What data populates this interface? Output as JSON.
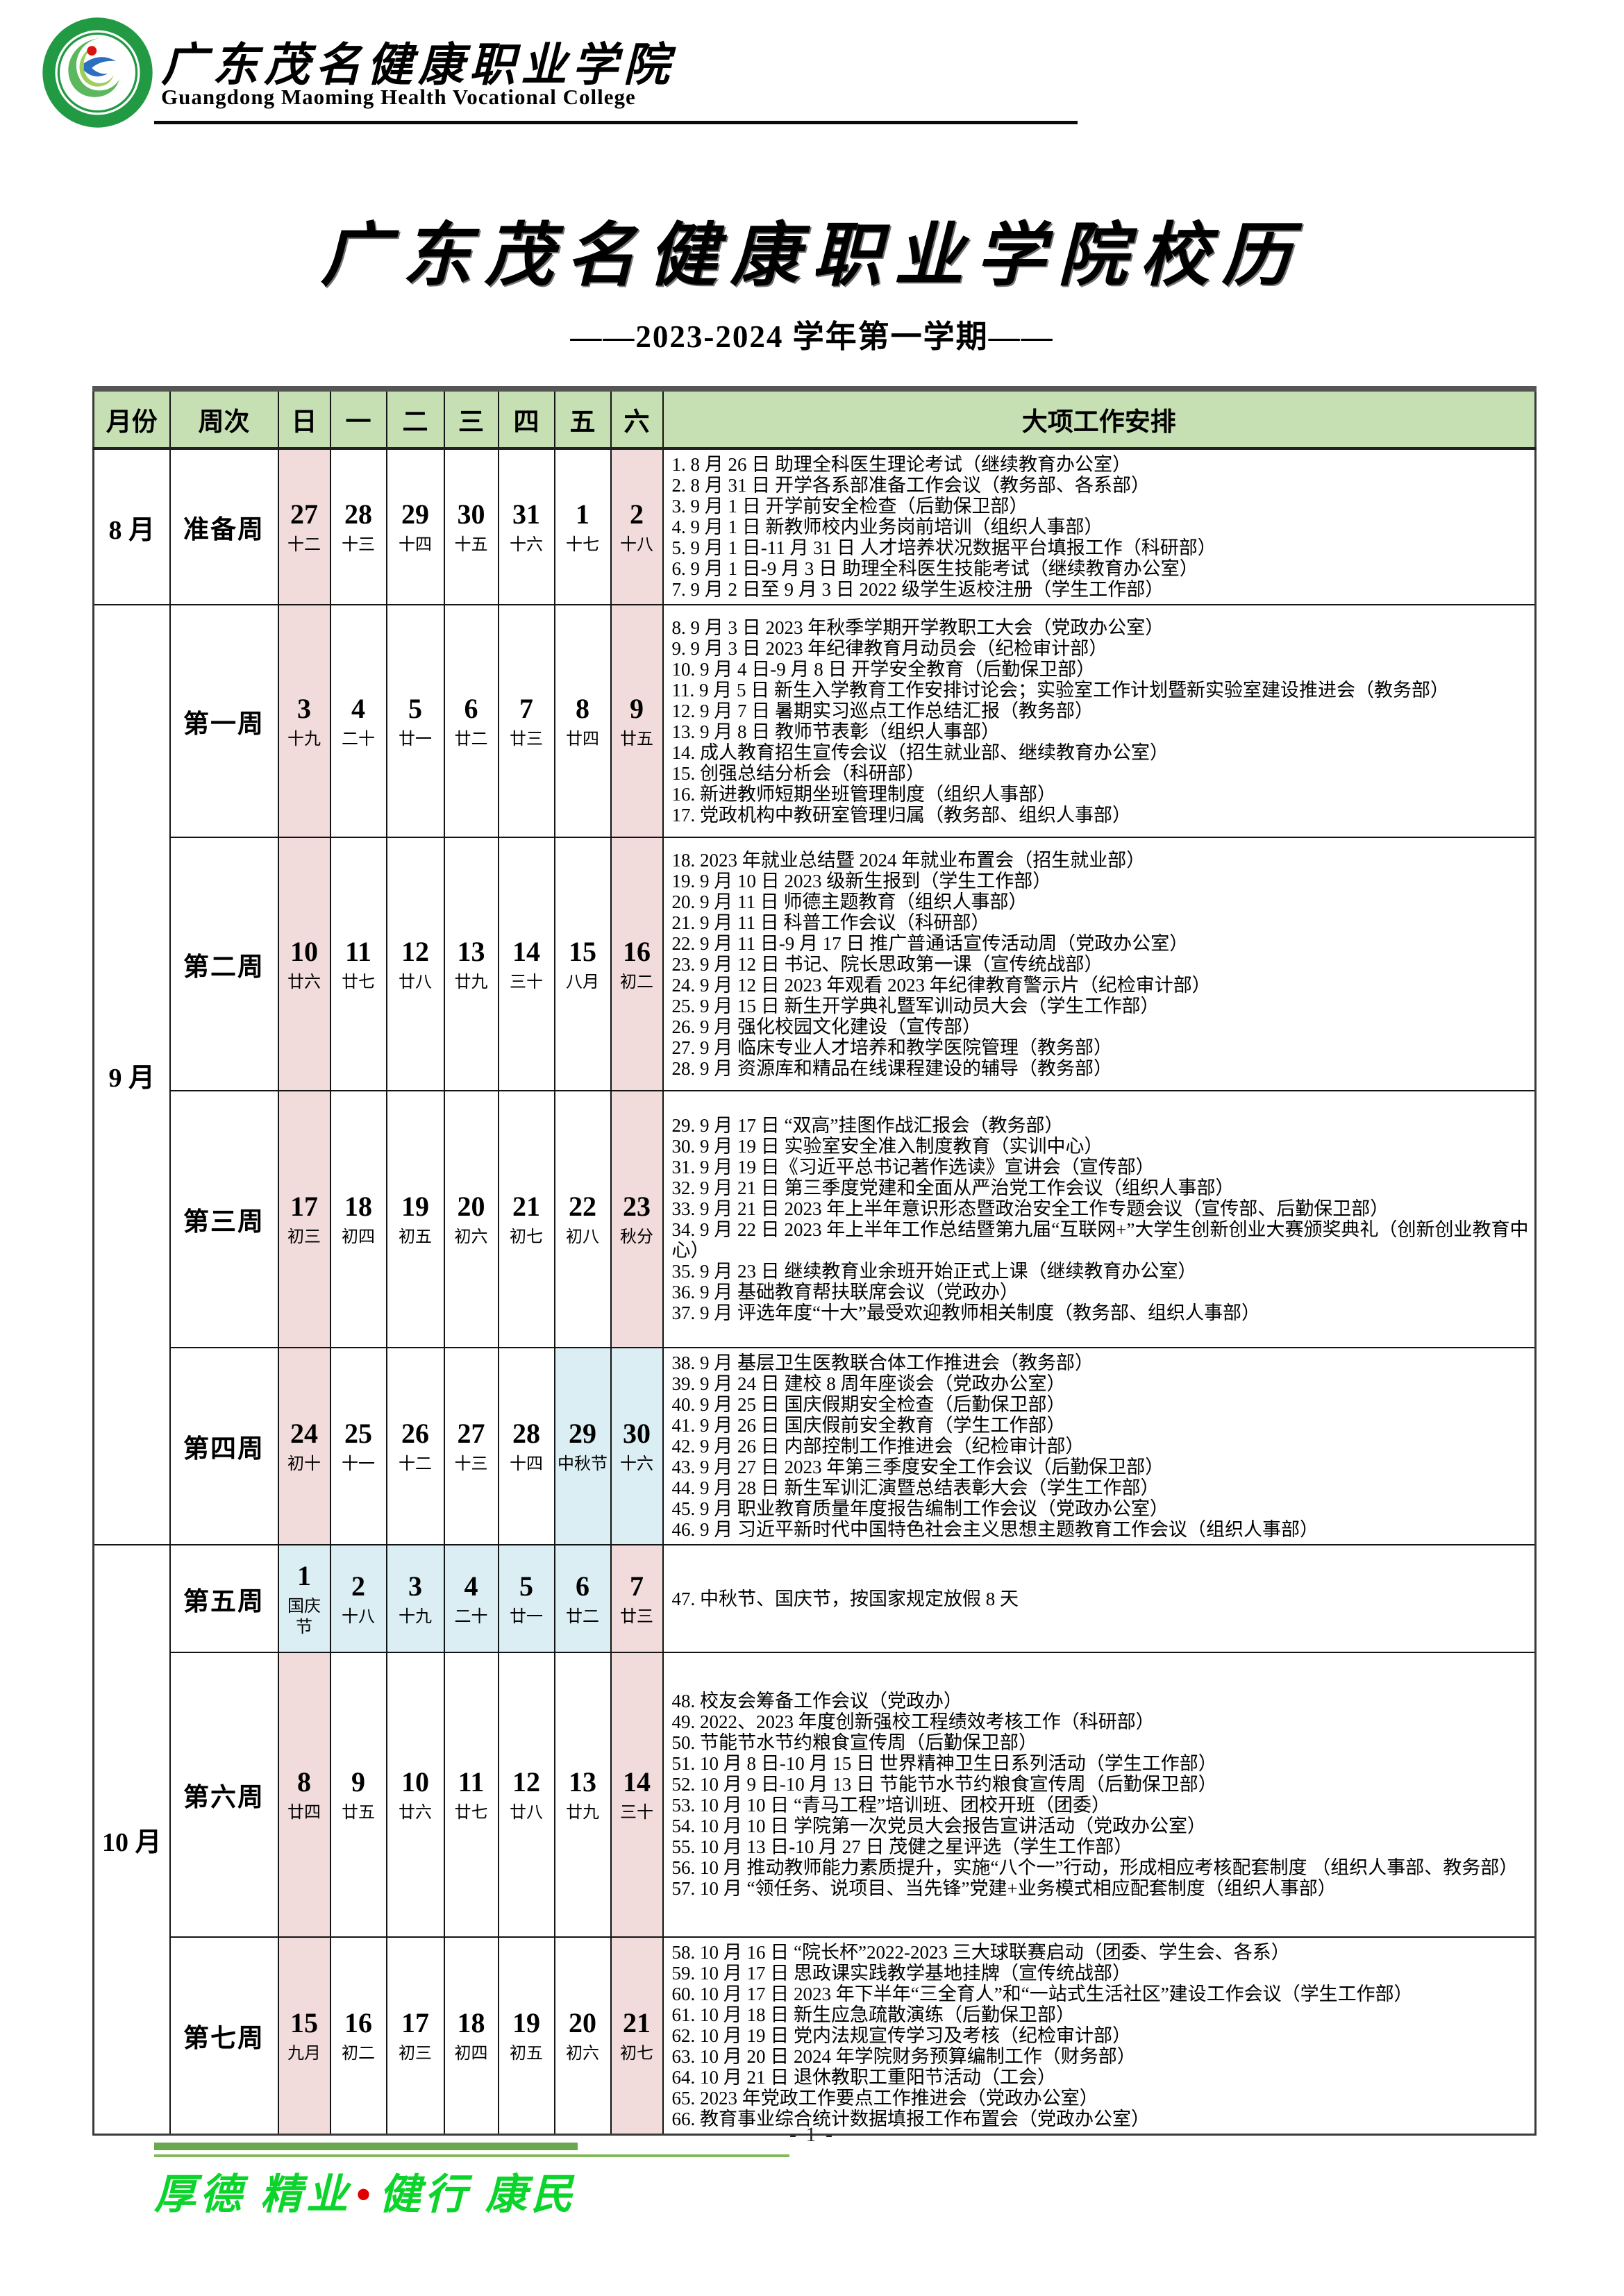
{
  "masthead": {
    "name_cn": "广东茂名健康职业学院",
    "name_en": "Guangdong Maoming Health Vocational College"
  },
  "title": "广东茂名健康职业学院校历",
  "subtitle": "——2023-2024 学年第一学期——",
  "table": {
    "headers": [
      "月份",
      "周次",
      "日",
      "一",
      "二",
      "三",
      "四",
      "五",
      "六",
      "大项工作安排"
    ],
    "months": [
      {
        "label": "8 月",
        "rowspan": 1
      },
      {
        "label": "9 月",
        "rowspan": 4
      },
      {
        "label": "10 月",
        "rowspan": 3
      }
    ],
    "weeks": [
      {
        "label": "准备周",
        "days": [
          {
            "num": "27",
            "lunar": "十二",
            "bg": "pink"
          },
          {
            "num": "28",
            "lunar": "十三",
            "bg": "white"
          },
          {
            "num": "29",
            "lunar": "十四",
            "bg": "white"
          },
          {
            "num": "30",
            "lunar": "十五",
            "bg": "white"
          },
          {
            "num": "31",
            "lunar": "十六",
            "bg": "white"
          },
          {
            "num": "1",
            "lunar": "十七",
            "bg": "white"
          },
          {
            "num": "2",
            "lunar": "十八",
            "bg": "pink"
          }
        ],
        "tasks": [
          "1. 8 月 26 日 助理全科医生理论考试（继续教育办公室）",
          "2. 8 月 31 日 开学各系部准备工作会议（教务部、各系部）",
          "3. 9 月 1 日 开学前安全检查（后勤保卫部）",
          "4. 9 月 1 日 新教师校内业务岗前培训（组织人事部）",
          "5. 9 月 1 日-11 月 31 日 人才培养状况数据平台填报工作（科研部）",
          "6. 9 月 1 日-9 月 3 日 助理全科医生技能考试（继续教育办公室）",
          "7. 9 月 2 日至 9 月 3 日 2022 级学生返校注册（学生工作部）"
        ]
      },
      {
        "label": "第一周",
        "days": [
          {
            "num": "3",
            "lunar": "十九",
            "bg": "pink"
          },
          {
            "num": "4",
            "lunar": "二十",
            "bg": "white"
          },
          {
            "num": "5",
            "lunar": "廿一",
            "bg": "white"
          },
          {
            "num": "6",
            "lunar": "廿二",
            "bg": "white"
          },
          {
            "num": "7",
            "lunar": "廿三",
            "bg": "white"
          },
          {
            "num": "8",
            "lunar": "廿四",
            "bg": "white"
          },
          {
            "num": "9",
            "lunar": "廿五",
            "bg": "pink"
          }
        ],
        "tasks": [
          "8. 9 月 3 日 2023 年秋季学期开学教职工大会（党政办公室）",
          "9. 9 月 3 日 2023 年纪律教育月动员会（纪检审计部）",
          "10. 9 月 4 日-9 月 8 日 开学安全教育（后勤保卫部）",
          "11. 9 月 5 日 新生入学教育工作安排讨论会；实验室工作计划暨新实验室建设推进会（教务部）",
          "12. 9 月 7 日 暑期实习巡点工作总结汇报（教务部）",
          "13. 9 月 8 日 教师节表彰（组织人事部）",
          "14. 成人教育招生宣传会议（招生就业部、继续教育办公室）",
          "15. 创强总结分析会（科研部）",
          "16. 新进教师短期坐班管理制度（组织人事部）",
          "17. 党政机构中教研室管理归属（教务部、组织人事部）"
        ]
      },
      {
        "label": "第二周",
        "days": [
          {
            "num": "10",
            "lunar": "廿六",
            "bg": "pink"
          },
          {
            "num": "11",
            "lunar": "廿七",
            "bg": "white"
          },
          {
            "num": "12",
            "lunar": "廿八",
            "bg": "white"
          },
          {
            "num": "13",
            "lunar": "廿九",
            "bg": "white"
          },
          {
            "num": "14",
            "lunar": "三十",
            "bg": "white"
          },
          {
            "num": "15",
            "lunar": "八月",
            "bg": "white"
          },
          {
            "num": "16",
            "lunar": "初二",
            "bg": "pink"
          }
        ],
        "tasks": [
          "18. 2023 年就业总结暨 2024 年就业布置会（招生就业部）",
          "19. 9 月 10 日 2023 级新生报到（学生工作部）",
          "20. 9 月 11 日 师德主题教育（组织人事部）",
          "21. 9 月 11 日 科普工作会议（科研部）",
          "22. 9 月 11 日-9 月 17 日 推广普通话宣传活动周（党政办公室）",
          "23. 9 月 12 日 书记、院长思政第一课（宣传统战部）",
          "24. 9 月 12 日  2023 年观看 2023 年纪律教育警示片（纪检审计部）",
          "25. 9 月 15 日 新生开学典礼暨军训动员大会（学生工作部）",
          "26. 9 月 强化校园文化建设（宣传部）",
          "27. 9 月 临床专业人才培养和教学医院管理（教务部）",
          "28. 9 月 资源库和精品在线课程建设的辅导（教务部）"
        ]
      },
      {
        "label": "第三周",
        "days": [
          {
            "num": "17",
            "lunar": "初三",
            "bg": "pink"
          },
          {
            "num": "18",
            "lunar": "初四",
            "bg": "white"
          },
          {
            "num": "19",
            "lunar": "初五",
            "bg": "white"
          },
          {
            "num": "20",
            "lunar": "初六",
            "bg": "white"
          },
          {
            "num": "21",
            "lunar": "初七",
            "bg": "white"
          },
          {
            "num": "22",
            "lunar": "初八",
            "bg": "white"
          },
          {
            "num": "23",
            "lunar": "秋分",
            "bg": "pink"
          }
        ],
        "tasks": [
          "29. 9 月 17 日 “双高”挂图作战汇报会（教务部）",
          "30. 9 月 19 日 实验室安全准入制度教育（实训中心）",
          "31. 9 月 19 日《习近平总书记著作选读》宣讲会（宣传部）",
          "32. 9 月 21 日 第三季度党建和全面从严治党工作会议（组织人事部）",
          "33. 9 月 21 日 2023 年上半年意识形态暨政治安全工作专题会议（宣传部、后勤保卫部）",
          "34. 9 月 22 日 2023 年上半年工作总结暨第九届“互联网+”大学生创新创业大赛颁奖典礼（创新创业教育中心）",
          "35. 9 月 23 日 继续教育业余班开始正式上课（继续教育办公室）",
          "36. 9 月 基础教育帮扶联席会议（党政办）",
          "37. 9 月 评选年度“十大”最受欢迎教师相关制度（教务部、组织人事部）"
        ]
      },
      {
        "label": "第四周",
        "days": [
          {
            "num": "24",
            "lunar": "初十",
            "bg": "pink"
          },
          {
            "num": "25",
            "lunar": "十一",
            "bg": "white"
          },
          {
            "num": "26",
            "lunar": "十二",
            "bg": "white"
          },
          {
            "num": "27",
            "lunar": "十三",
            "bg": "white"
          },
          {
            "num": "28",
            "lunar": "十四",
            "bg": "white"
          },
          {
            "num": "29",
            "lunar": "中秋节",
            "bg": "blue"
          },
          {
            "num": "30",
            "lunar": "十六",
            "bg": "blue"
          }
        ],
        "tasks": [
          "38. 9 月 基层卫生医教联合体工作推进会（教务部）",
          "39. 9 月 24 日 建校 8 周年座谈会（党政办公室）",
          "40. 9 月 25 日 国庆假期安全检查（后勤保卫部）",
          "41. 9 月 26 日 国庆假前安全教育（学生工作部）",
          "42. 9 月 26 日 内部控制工作推进会（纪检审计部）",
          "43. 9 月 27 日 2023 年第三季度安全工作会议（后勤保卫部）",
          "44. 9 月 28 日 新生军训汇演暨总结表彰大会（学生工作部）",
          "45. 9 月 职业教育质量年度报告编制工作会议（党政办公室）",
          "46. 9 月 习近平新时代中国特色社会主义思想主题教育工作会议（组织人事部）"
        ]
      },
      {
        "label": "第五周",
        "days": [
          {
            "num": "1",
            "lunar": "国庆节",
            "bg": "blue"
          },
          {
            "num": "2",
            "lunar": "十八",
            "bg": "blue"
          },
          {
            "num": "3",
            "lunar": "十九",
            "bg": "blue"
          },
          {
            "num": "4",
            "lunar": "二十",
            "bg": "blue"
          },
          {
            "num": "5",
            "lunar": "廿一",
            "bg": "blue"
          },
          {
            "num": "6",
            "lunar": "廿二",
            "bg": "blue"
          },
          {
            "num": "7",
            "lunar": "廿三",
            "bg": "pink"
          }
        ],
        "tasks": [
          "47. 中秋节、国庆节，按国家规定放假 8 天"
        ]
      },
      {
        "label": "第六周",
        "days": [
          {
            "num": "8",
            "lunar": "廿四",
            "bg": "pink"
          },
          {
            "num": "9",
            "lunar": "廿五",
            "bg": "white"
          },
          {
            "num": "10",
            "lunar": "廿六",
            "bg": "white"
          },
          {
            "num": "11",
            "lunar": "廿七",
            "bg": "white"
          },
          {
            "num": "12",
            "lunar": "廿八",
            "bg": "white"
          },
          {
            "num": "13",
            "lunar": "廿九",
            "bg": "white"
          },
          {
            "num": "14",
            "lunar": "三十",
            "bg": "pink"
          }
        ],
        "tasks": [
          "48. 校友会筹备工作会议（党政办）",
          "49. 2022、2023 年度创新强校工程绩效考核工作（科研部）",
          "50. 节能节水节约粮食宣传周（后勤保卫部）",
          "51. 10 月 8 日-10 月 15 日 世界精神卫生日系列活动（学生工作部）",
          "52. 10 月 9 日-10 月 13 日 节能节水节约粮食宣传周（后勤保卫部）",
          "53. 10 月 10 日 “青马工程”培训班、团校开班（团委）",
          "54. 10 月 10 日  学院第一次党员大会报告宣讲活动（党政办公室）",
          "55. 10 月 13 日-10 月 27 日 茂健之星评选（学生工作部）",
          "56. 10 月 推动教师能力素质提升，实施“八个一”行动，形成相应考核配套制度 （组织人事部、教务部）",
          "57. 10 月 “领任务、说项目、当先锋”党建+业务模式相应配套制度（组织人事部）"
        ]
      },
      {
        "label": "第七周",
        "days": [
          {
            "num": "15",
            "lunar": "九月",
            "bg": "pink"
          },
          {
            "num": "16",
            "lunar": "初二",
            "bg": "white"
          },
          {
            "num": "17",
            "lunar": "初三",
            "bg": "white"
          },
          {
            "num": "18",
            "lunar": "初四",
            "bg": "white"
          },
          {
            "num": "19",
            "lunar": "初五",
            "bg": "white"
          },
          {
            "num": "20",
            "lunar": "初六",
            "bg": "white"
          },
          {
            "num": "21",
            "lunar": "初七",
            "bg": "pink"
          }
        ],
        "tasks": [
          "58. 10 月 16 日 “院长杯”2022-2023 三大球联赛启动（团委、学生会、各系）",
          "59. 10 月 17 日 思政课实践教学基地挂牌（宣传统战部）",
          "60. 10 月 17 日 2023 年下半年“三全育人”和“一站式生活社区”建设工作会议（学生工作部）",
          "61. 10 月 18 日 新生应急疏散演练（后勤保卫部）",
          "62. 10 月 19 日 党内法规宣传学习及考核（纪检审计部）",
          "63. 10 月 20 日 2024 年学院财务预算编制工作（财务部）",
          "64. 10 月 21 日 退休教职工重阳节活动（工会）",
          "65. 2023 年党政工作要点工作推进会（党政办公室）",
          "66. 教育事业综合统计数据填报工作布置会（党政办公室）"
        ]
      }
    ]
  },
  "footer": {
    "motto_left": "厚德 精业",
    "motto_separator": "•",
    "motto_right": "健行 康民",
    "page_number": "- 1 -"
  },
  "colors": {
    "header_green": "#c6e0b4",
    "weekend_pink": "#f2dcdb",
    "holiday_blue": "#daeef3",
    "motto_green": "#0bd42a",
    "rule_green": "#6aa84f"
  }
}
